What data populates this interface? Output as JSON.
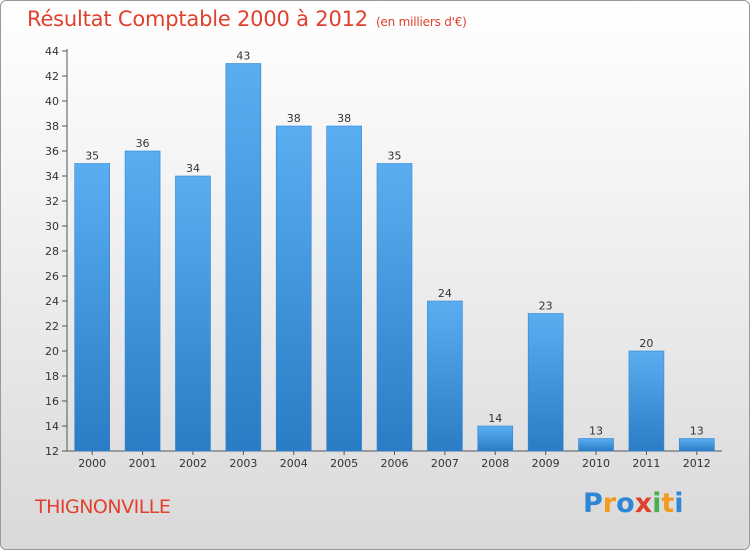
{
  "header": {
    "title": "Résultat Comptable 2000 à 2012",
    "unit": "(en milliers d'€)"
  },
  "footer": {
    "commune": "THIGNONVILLE",
    "logo_letters": [
      "P",
      "r",
      "o",
      "x",
      "i",
      "t",
      "i"
    ],
    "logo_colors": [
      "#2f86d6",
      "#f29c1f",
      "#2f86d6",
      "#e0412e",
      "#4caf50",
      "#f29c1f",
      "#2f86d6"
    ]
  },
  "colors": {
    "bar_top": "#5aaef0",
    "bar_bottom": "#2a7cc4",
    "accent": "#e0412e"
  },
  "chart_data": {
    "type": "bar",
    "title": "Résultat Comptable 2000 à 2012",
    "subtitle": "(en milliers d'€)",
    "xlabel": "",
    "ylabel": "",
    "categories": [
      "2000",
      "2001",
      "2002",
      "2003",
      "2004",
      "2005",
      "2006",
      "2007",
      "2008",
      "2009",
      "2010",
      "2011",
      "2012"
    ],
    "values": [
      35,
      36,
      34,
      43,
      38,
      38,
      35,
      24,
      14,
      23,
      13,
      20,
      13
    ],
    "ylim": [
      12,
      44
    ],
    "yticks": [
      12,
      14,
      16,
      18,
      20,
      22,
      24,
      26,
      28,
      30,
      32,
      34,
      36,
      38,
      40,
      42,
      44
    ],
    "grid": false
  }
}
